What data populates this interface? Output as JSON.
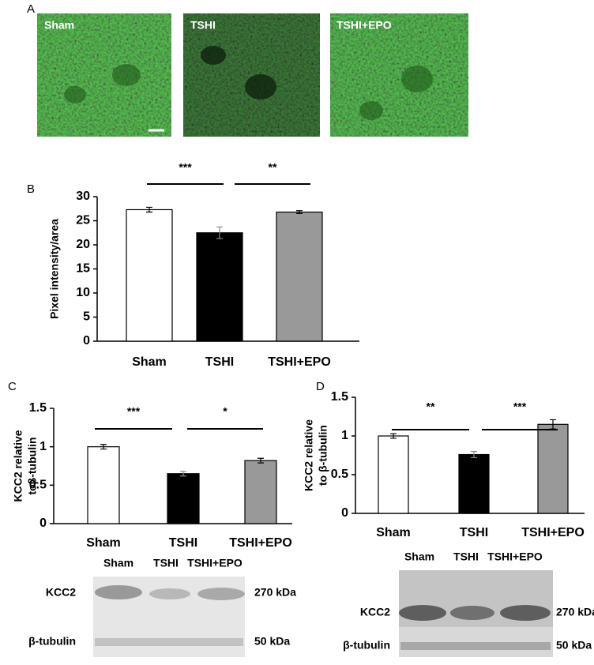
{
  "panels": [
    "A",
    "B",
    "C",
    "D"
  ],
  "micrographs": [
    "Sham",
    "TSHI",
    "TSHI+EPO"
  ],
  "chart_data": [
    {
      "type": "bar",
      "ylabel": [
        "Pixel intensity/area"
      ],
      "categories": [
        "Sham",
        "TSHI",
        "TSHI+EPO"
      ],
      "values": [
        27.3,
        22.5,
        26.8
      ],
      "errors": [
        0.5,
        1.2,
        0.3
      ],
      "colors": [
        "#ffffff",
        "#000000",
        "#999999"
      ],
      "ylim": [
        0,
        30
      ],
      "yticks": [
        0,
        5,
        10,
        15,
        20,
        25,
        30
      ],
      "significance": [
        "***",
        "**"
      ]
    },
    {
      "type": "bar",
      "ylabel": [
        "KCC2 relative",
        "toβ-tubulin"
      ],
      "categories": [
        "Sham",
        "TSHI",
        "TSHI+EPO"
      ],
      "values": [
        1.0,
        0.65,
        0.82
      ],
      "errors": [
        0.03,
        0.03,
        0.03
      ],
      "colors": [
        "#ffffff",
        "#000000",
        "#999999"
      ],
      "ylim": [
        0,
        1.5
      ],
      "yticks": [
        0,
        0.5,
        1,
        1.5
      ],
      "significance": [
        "***",
        "*"
      ]
    },
    {
      "type": "bar",
      "ylabel": [
        "KCC2 relative",
        "to β-tubulin"
      ],
      "categories": [
        "Sham",
        "TSHI",
        "TSHI+EPO"
      ],
      "values": [
        1.0,
        0.76,
        1.15
      ],
      "errors": [
        0.03,
        0.04,
        0.06
      ],
      "colors": [
        "#ffffff",
        "#000000",
        "#999999"
      ],
      "ylim": [
        0,
        1.5
      ],
      "yticks": [
        0,
        0.5,
        1,
        1.5
      ],
      "significance": [
        "**",
        "***"
      ]
    }
  ],
  "blots": [
    {
      "lanes": [
        "Sham",
        "TSHI",
        "TSHI+EPO"
      ],
      "rows": [
        {
          "label": "KCC2",
          "size": "270 kDa"
        },
        {
          "label": "β-tubulin",
          "size": "50 kDa"
        }
      ]
    },
    {
      "lanes": [
        "Sham",
        "TSHI",
        "TSHI+EPO"
      ],
      "rows": [
        {
          "label": "KCC2",
          "size": "270 kDa"
        },
        {
          "label": "β-tubulin",
          "size": "50 kDa"
        }
      ]
    }
  ]
}
